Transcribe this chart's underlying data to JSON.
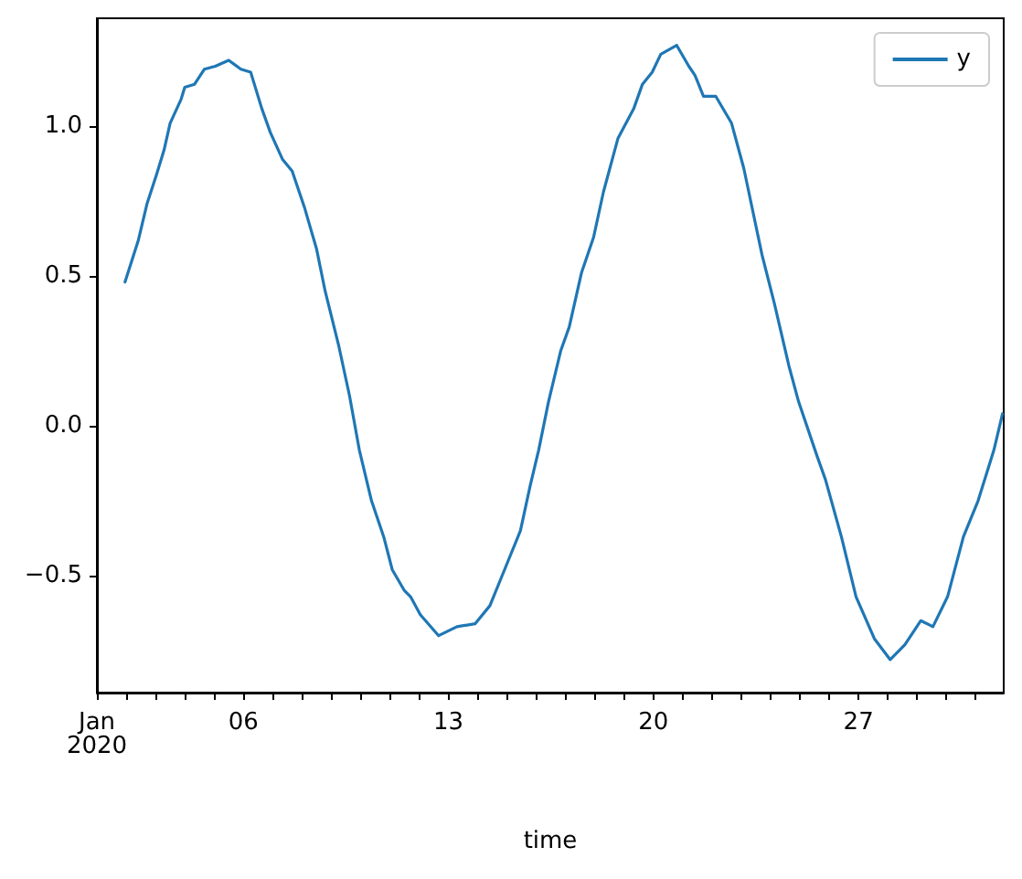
{
  "chart_data": {
    "type": "line",
    "xlabel": "time",
    "legend": "top right",
    "grid": false,
    "marker": "none",
    "line_style": "solid",
    "xlim": [
      "2020-01-01T00:00",
      "2020-01-31T23:00"
    ],
    "xticks": [
      {
        "value": "2020-01-01",
        "label": "Jan\n2020"
      },
      {
        "value": "2020-01-02",
        "label": null
      },
      {
        "value": "2020-01-03",
        "label": null
      },
      {
        "value": "2020-01-04",
        "label": null
      },
      {
        "value": "2020-01-05",
        "label": null
      },
      {
        "value": "2020-01-06",
        "label": "06"
      },
      {
        "value": "2020-01-07",
        "label": null
      },
      {
        "value": "2020-01-08",
        "label": null
      },
      {
        "value": "2020-01-09",
        "label": null
      },
      {
        "value": "2020-01-10",
        "label": null
      },
      {
        "value": "2020-01-11",
        "label": null
      },
      {
        "value": "2020-01-12",
        "label": null
      },
      {
        "value": "2020-01-13",
        "label": "13"
      },
      {
        "value": "2020-01-14",
        "label": null
      },
      {
        "value": "2020-01-15",
        "label": null
      },
      {
        "value": "2020-01-16",
        "label": null
      },
      {
        "value": "2020-01-17",
        "label": null
      },
      {
        "value": "2020-01-18",
        "label": null
      },
      {
        "value": "2020-01-19",
        "label": null
      },
      {
        "value": "2020-01-20",
        "label": "20"
      },
      {
        "value": "2020-01-21",
        "label": null
      },
      {
        "value": "2020-01-22",
        "label": null
      },
      {
        "value": "2020-01-23",
        "label": null
      },
      {
        "value": "2020-01-24",
        "label": null
      },
      {
        "value": "2020-01-25",
        "label": null
      },
      {
        "value": "2020-01-26",
        "label": null
      },
      {
        "value": "2020-01-27",
        "label": "27"
      },
      {
        "value": "2020-01-28",
        "label": null
      },
      {
        "value": "2020-01-29",
        "label": null
      },
      {
        "value": "2020-01-30",
        "label": null
      },
      {
        "value": "2020-01-31",
        "label": null
      }
    ],
    "ylim": [
      -0.89,
      1.36
    ],
    "yticks": [
      {
        "value": -0.5,
        "label": "−0.5"
      },
      {
        "value": 0,
        "label": "0.0"
      },
      {
        "value": 0.5,
        "label": "0.5"
      },
      {
        "value": 1,
        "label": "1.0"
      }
    ],
    "x": [
      "2020-01-01T23:00",
      "2020-01-02T10:00",
      "2020-01-02T17:00",
      "2020-01-03T01:00",
      "2020-01-03T07:00",
      "2020-01-03T12:00",
      "2020-01-03T21:00",
      "2020-01-04T00:00",
      "2020-01-04T08:00",
      "2020-01-04T16:00",
      "2020-01-05T01:00",
      "2020-01-05T12:00",
      "2020-01-05T22:00",
      "2020-01-06T06:00",
      "2020-01-06T15:00",
      "2020-01-06T22:00",
      "2020-01-07T08:00",
      "2020-01-07T16:00",
      "2020-01-08T02:00",
      "2020-01-08T12:00",
      "2020-01-08T19:00",
      "2020-01-09T06:00",
      "2020-01-09T15:00",
      "2020-01-09T23:00",
      "2020-01-10T09:00",
      "2020-01-10T19:00",
      "2020-01-11T02:00",
      "2020-01-11T12:00",
      "2020-01-11T17:00",
      "2020-01-12T01:00",
      "2020-01-12T16:00",
      "2020-01-13T07:00",
      "2020-01-13T22:00",
      "2020-01-14T10:00",
      "2020-01-14T23:00",
      "2020-01-15T11:00",
      "2020-01-15T19:00",
      "2020-01-16T02:00",
      "2020-01-16T10:00",
      "2020-01-16T20:00",
      "2020-01-17T03:00",
      "2020-01-17T13:00",
      "2020-01-17T23:00",
      "2020-01-18T07:00",
      "2020-01-18T19:00",
      "2020-01-19T08:00",
      "2020-01-19T15:00",
      "2020-01-19T23:00",
      "2020-01-20T06:00",
      "2020-01-20T19:00",
      "2020-01-21T05:00",
      "2020-01-21T10:00",
      "2020-01-21T17:00",
      "2020-01-22T03:00",
      "2020-01-22T16:00",
      "2020-01-23T02:00",
      "2020-01-23T17:00",
      "2020-01-24T03:00",
      "2020-01-24T15:00",
      "2020-01-24T23:00",
      "2020-01-25T14:00",
      "2020-01-25T21:00",
      "2020-01-26T10:00",
      "2020-01-26T22:00",
      "2020-01-27T13:00",
      "2020-01-28T02:00",
      "2020-01-28T14:00",
      "2020-01-29T03:00",
      "2020-01-29T13:00",
      "2020-01-30T01:00",
      "2020-01-30T14:00",
      "2020-01-31T02:00",
      "2020-01-31T15:00",
      "2020-01-31T22:00"
    ],
    "series": [
      {
        "name": "y",
        "color": "#1f77b4",
        "values": [
          0.48,
          0.62,
          0.74,
          0.84,
          0.92,
          1.01,
          1.09,
          1.13,
          1.14,
          1.19,
          1.2,
          1.22,
          1.19,
          1.18,
          1.06,
          0.98,
          0.89,
          0.85,
          0.73,
          0.59,
          0.45,
          0.27,
          0.1,
          -0.08,
          -0.25,
          -0.37,
          -0.48,
          -0.55,
          -0.57,
          -0.63,
          -0.7,
          -0.67,
          -0.66,
          -0.6,
          -0.47,
          -0.35,
          -0.2,
          -0.08,
          0.08,
          0.25,
          0.33,
          0.51,
          0.63,
          0.78,
          0.96,
          1.06,
          1.14,
          1.18,
          1.24,
          1.27,
          1.2,
          1.17,
          1.1,
          1.1,
          1.01,
          0.86,
          0.57,
          0.41,
          0.2,
          0.08,
          -0.1,
          -0.18,
          -0.37,
          -0.57,
          -0.71,
          -0.78,
          -0.73,
          -0.65,
          -0.67,
          -0.57,
          -0.37,
          -0.25,
          -0.08,
          0.04
        ]
      }
    ]
  }
}
